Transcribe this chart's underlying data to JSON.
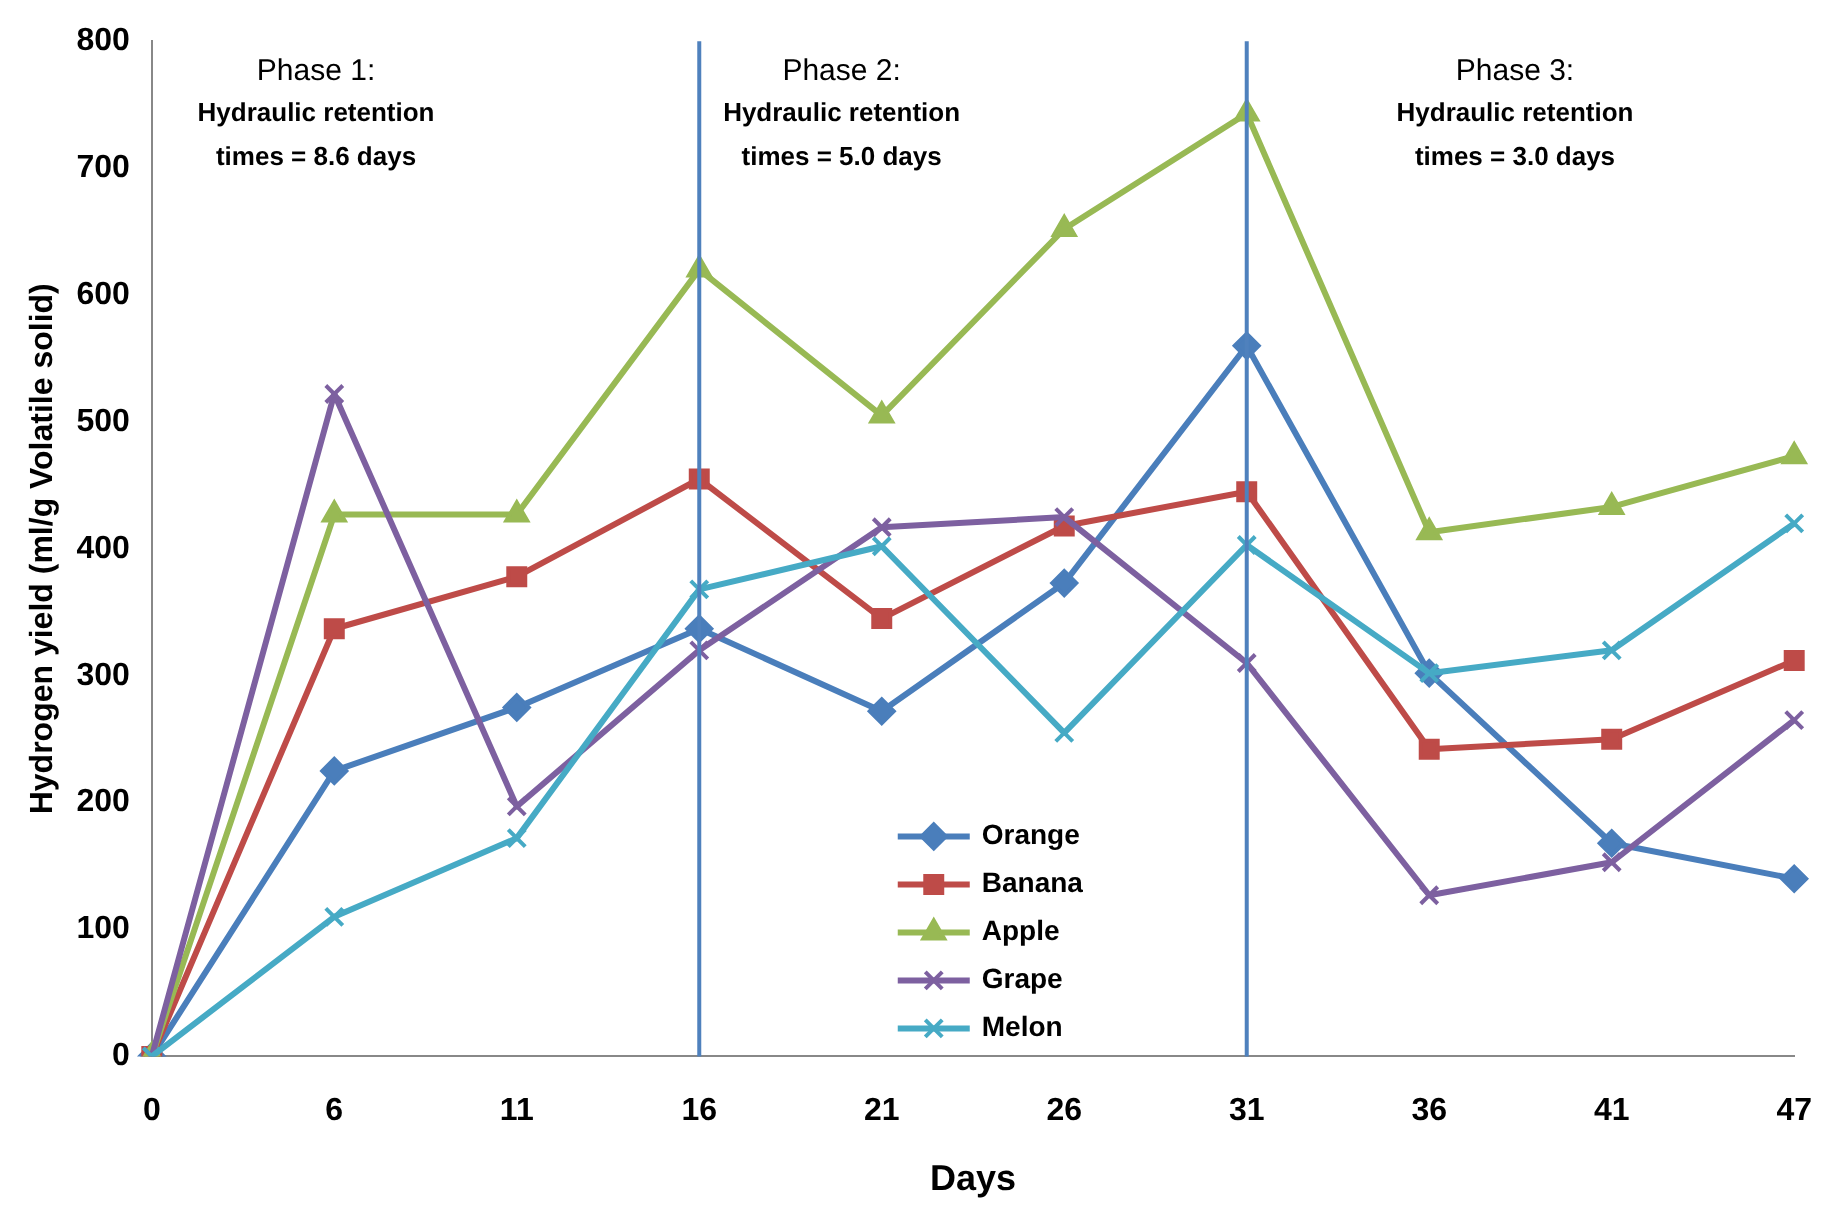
{
  "chart_data": {
    "type": "line",
    "xlabel": "Days",
    "ylabel": "Hydrogen yield (ml/g Volatile solid)",
    "categories": [
      "0",
      "6",
      "11",
      "16",
      "21",
      "26",
      "31",
      "36",
      "41",
      "47"
    ],
    "series": [
      {
        "name": "Orange",
        "color": "#4a7ebb",
        "marker": "diamond",
        "values": [
          0,
          225,
          275,
          337,
          272,
          373,
          560,
          302,
          168,
          140
        ]
      },
      {
        "name": "Banana",
        "color": "#be4b48",
        "marker": "square",
        "values": [
          0,
          337,
          378,
          455,
          345,
          418,
          445,
          242,
          250,
          312
        ]
      },
      {
        "name": "Apple",
        "color": "#98b954",
        "marker": "triangle",
        "values": [
          0,
          427,
          427,
          620,
          505,
          652,
          743,
          413,
          433,
          473
        ]
      },
      {
        "name": "Grape",
        "color": "#7d60a0",
        "marker": "cross",
        "values": [
          0,
          522,
          197,
          320,
          417,
          425,
          310,
          127,
          153,
          265
        ]
      },
      {
        "name": "Melon",
        "color": "#46aac5",
        "marker": "cross",
        "values": [
          0,
          110,
          172,
          368,
          402,
          255,
          403,
          302,
          320,
          420
        ]
      }
    ],
    "ylim": [
      0,
      800
    ],
    "yticks": [
      0,
      100,
      200,
      300,
      400,
      500,
      600,
      700,
      800
    ],
    "grid": false,
    "legend": "bottom",
    "ref_lines": [
      {
        "axis": "x",
        "value": "16",
        "color": "#4f81bd"
      },
      {
        "axis": "x",
        "value": "31",
        "color": "#4f81bd"
      }
    ],
    "annotations": [
      "Phase 1:\nHydraulic retention\ntimes = 8.6 days",
      "Phase 2:\nHydraulic retention\ntimes = 5.0 days",
      "Phase 3:\nHydraulic retention\ntimes = 3.0 days"
    ]
  }
}
